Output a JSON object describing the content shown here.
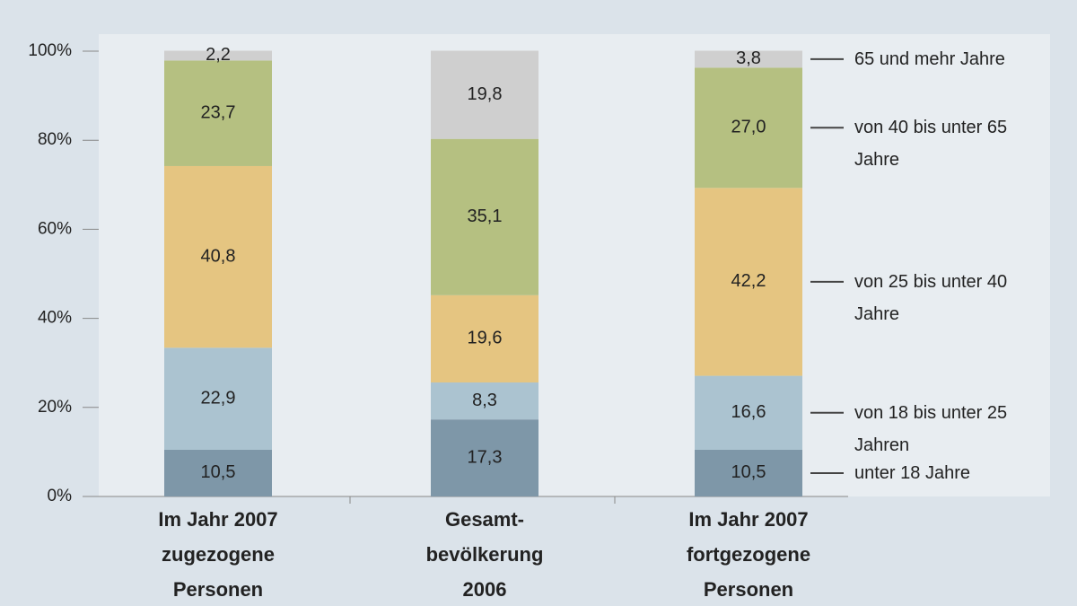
{
  "chart_data": {
    "type": "stacked-bar",
    "categories": [
      [
        "Im Jahr 2007",
        "zugezogene",
        "Personen"
      ],
      [
        "Gesamt-",
        "bevölkerung",
        "2006"
      ],
      [
        "Im Jahr 2007",
        "fortgezogene",
        "Personen"
      ]
    ],
    "series": [
      {
        "name": "unter 18 Jahre",
        "color": "#7e97a8",
        "values": [
          10.5,
          17.3,
          10.5
        ],
        "value_labels": [
          "10,5",
          "17,3",
          "10,5"
        ]
      },
      {
        "name": "von 18 bis unter 25 Jahren",
        "color": "#abc3d0",
        "values": [
          22.9,
          8.3,
          16.6
        ],
        "value_labels": [
          "22,9",
          "8,3",
          "16,6"
        ]
      },
      {
        "name": "von 25 bis unter 40 Jahre",
        "color": "#e5c581",
        "values": [
          40.8,
          19.6,
          42.2
        ],
        "value_labels": [
          "40,8",
          "19,6",
          "42,2"
        ]
      },
      {
        "name": "von 40 bis unter 65 Jahre",
        "color": "#b5c081",
        "values": [
          23.7,
          35.1,
          27.0
        ],
        "value_labels": [
          "23,7",
          "35,1",
          "27,0"
        ]
      },
      {
        "name": "65 und mehr Jahre",
        "color": "#cfcfcf",
        "values": [
          2.2,
          19.8,
          3.8
        ],
        "value_labels": [
          "2,2",
          "19,8",
          "3,8"
        ]
      }
    ],
    "ylim": [
      0,
      100
    ],
    "yticks": [
      {
        "value": 0,
        "label": "0%"
      },
      {
        "value": 20,
        "label": "20%"
      },
      {
        "value": 40,
        "label": "40%"
      },
      {
        "value": 60,
        "label": "60%"
      },
      {
        "value": 80,
        "label": "80%"
      },
      {
        "value": 100,
        "label": "100%"
      }
    ],
    "legend": "right"
  }
}
